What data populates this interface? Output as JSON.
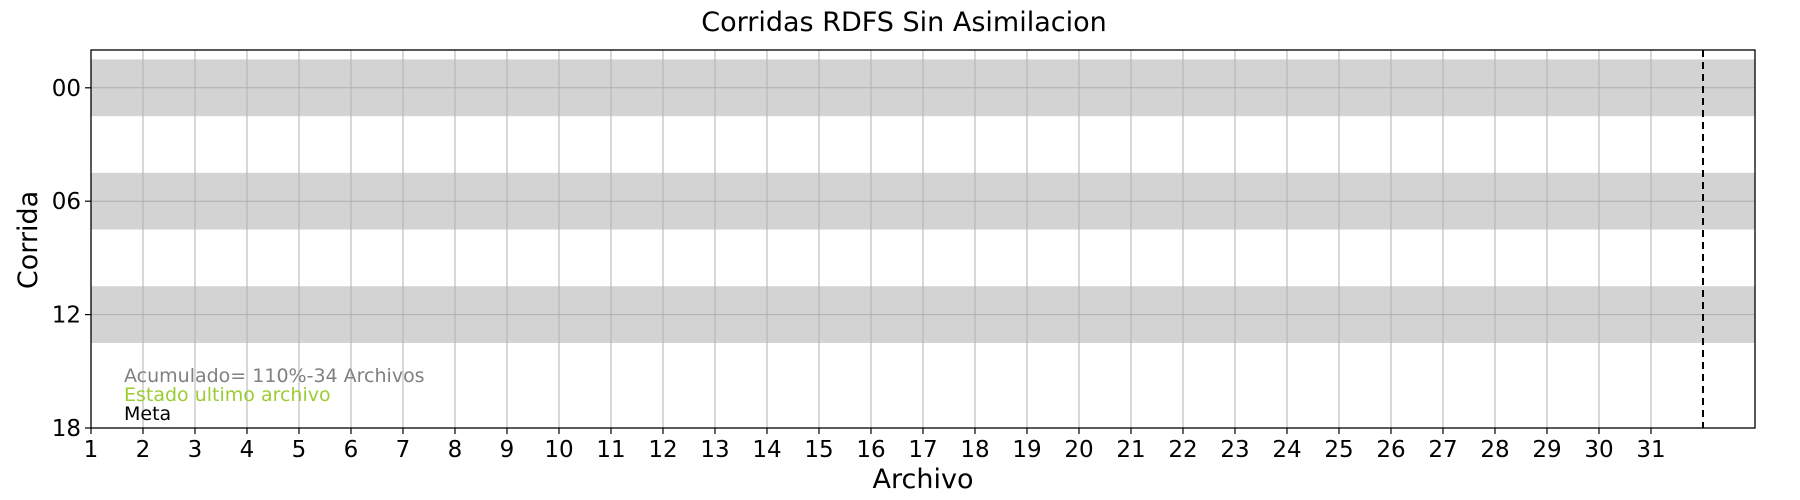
{
  "chart_data": {
    "type": "timeline",
    "title": "Corridas RDFS Sin Asimilacion",
    "xlabel": "Archivo",
    "ylabel": "Corrida",
    "xlim": [
      1,
      33
    ],
    "x_ticks": [
      "1",
      "2",
      "3",
      "4",
      "5",
      "6",
      "7",
      "8",
      "9",
      "10",
      "11",
      "12",
      "13",
      "14",
      "15",
      "16",
      "17",
      "18",
      "19",
      "20",
      "21",
      "22",
      "23",
      "24",
      "25",
      "26",
      "27",
      "28",
      "29",
      "30",
      "31"
    ],
    "ylim": [
      18,
      -2
    ],
    "y_ticks": [
      "00",
      "06",
      "12",
      "18"
    ],
    "y_tick_values": [
      0,
      6,
      12,
      18
    ],
    "bands": [
      {
        "corrida": "00",
        "center": 0,
        "color": "#d3d3d3"
      },
      {
        "corrida": "06",
        "center": 6,
        "color": "#d3d3d3"
      },
      {
        "corrida": "12",
        "center": 12,
        "color": "#d3d3d3"
      }
    ],
    "band_half_height": 1.5,
    "meta_line_x": 32,
    "grid": true,
    "annotations": [
      {
        "text": "Acumulado= 110%-34 Archivos",
        "color": "#808080"
      },
      {
        "text": "Estado ultimo archivo",
        "color": "#9acd32"
      },
      {
        "text": "Meta",
        "color": "#000000"
      }
    ]
  }
}
